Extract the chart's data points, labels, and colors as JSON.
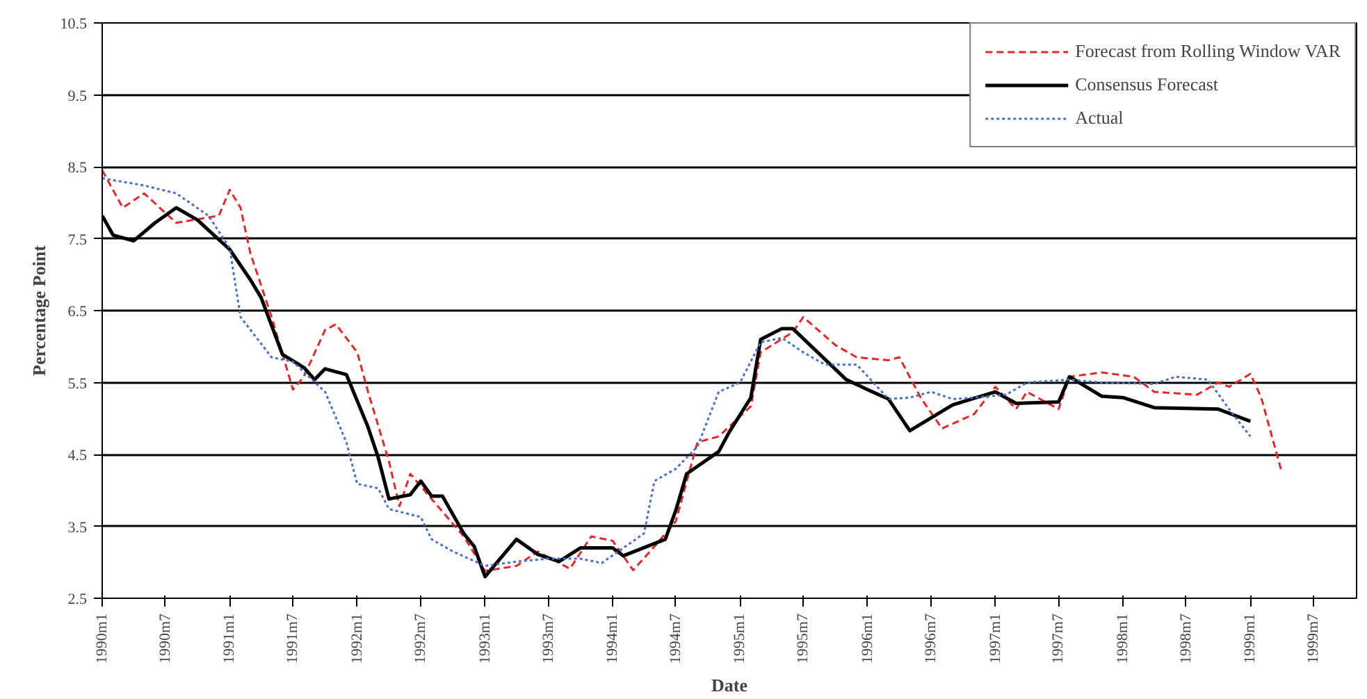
{
  "chart_data": {
    "type": "line",
    "xlabel": "Date",
    "ylabel": "Percentage Point",
    "xlim": [
      "1990-01",
      "1999-11"
    ],
    "ylim": [
      2.5,
      10.5
    ],
    "xticks": [
      {
        "value": "1990-01",
        "label": "1990m1"
      },
      {
        "value": "1990-07",
        "label": "1990m7"
      },
      {
        "value": "1991-01",
        "label": "1991m1"
      },
      {
        "value": "1991-07",
        "label": "1991m7"
      },
      {
        "value": "1992-01",
        "label": "1992m1"
      },
      {
        "value": "1992-07",
        "label": "1992m7"
      },
      {
        "value": "1993-01",
        "label": "1993m1"
      },
      {
        "value": "1993-07",
        "label": "1993m7"
      },
      {
        "value": "1994-01",
        "label": "1994m1"
      },
      {
        "value": "1994-07",
        "label": "1994m7"
      },
      {
        "value": "1995-01",
        "label": "1995m1"
      },
      {
        "value": "1995-07",
        "label": "1995m7"
      },
      {
        "value": "1996-01",
        "label": "1996m1"
      },
      {
        "value": "1996-07",
        "label": "1996m7"
      },
      {
        "value": "1997-01",
        "label": "1997m1"
      },
      {
        "value": "1997-07",
        "label": "1997m7"
      },
      {
        "value": "1998-01",
        "label": "1998m1"
      },
      {
        "value": "1998-07",
        "label": "1998m7"
      },
      {
        "value": "1999-01",
        "label": "1999m1"
      },
      {
        "value": "1999-07",
        "label": "1999m7"
      }
    ],
    "yticks": [
      2.5,
      3.5,
      4.5,
      5.5,
      6.5,
      7.5,
      8.5,
      9.5,
      10.5
    ],
    "grid": "y",
    "legend": "top right",
    "series": [
      {
        "name": "Forecast from Rolling Window VAR",
        "color": "#e8262a",
        "line_style": "dashed",
        "x": [
          "1990-01",
          "1990-03",
          "1990-05",
          "1990-08",
          "1990-12",
          "1991-01",
          "1991-02",
          "1991-03",
          "1991-05",
          "1991-07",
          "1991-08",
          "1991-10",
          "1991-11",
          "1992-01",
          "1992-02",
          "1992-04",
          "1992-05",
          "1992-06",
          "1992-08",
          "1992-11",
          "1993-01",
          "1993-04",
          "1993-06",
          "1993-09",
          "1993-11",
          "1994-01",
          "1994-03",
          "1994-05",
          "1994-07",
          "1994-09",
          "1994-11",
          "1995-02",
          "1995-03",
          "1995-06",
          "1995-07",
          "1995-10",
          "1995-12",
          "1996-03",
          "1996-04",
          "1996-06",
          "1996-08",
          "1996-11",
          "1997-01",
          "1997-03",
          "1997-04",
          "1997-07",
          "1997-08",
          "1997-11",
          "1998-02",
          "1998-04",
          "1998-08",
          "1998-10",
          "1998-11",
          "1999-01",
          "1999-02",
          "1999-04"
        ],
        "values": [
          8.45,
          7.93,
          8.13,
          7.72,
          7.82,
          8.18,
          7.93,
          7.3,
          6.41,
          5.4,
          5.58,
          6.23,
          6.31,
          5.92,
          5.37,
          4.4,
          3.78,
          4.23,
          3.88,
          3.36,
          2.88,
          2.95,
          3.15,
          2.91,
          3.36,
          3.3,
          2.89,
          3.22,
          3.57,
          4.67,
          4.75,
          5.17,
          5.92,
          6.2,
          6.41,
          6.02,
          5.85,
          5.81,
          5.85,
          5.29,
          4.86,
          5.06,
          5.44,
          5.13,
          5.37,
          5.13,
          5.58,
          5.64,
          5.58,
          5.37,
          5.33,
          5.5,
          5.44,
          5.62,
          5.29,
          4.25
        ]
      },
      {
        "name": "Consensus Forecast",
        "color": "#000000",
        "line_style": "solid",
        "x": [
          "1990-01",
          "1990-02",
          "1990-04",
          "1990-06",
          "1990-08",
          "1990-10",
          "1990-11",
          "1991-01",
          "1991-03",
          "1991-04",
          "1991-06",
          "1991-08",
          "1991-09",
          "1991-10",
          "1991-12",
          "1992-02",
          "1992-03",
          "1992-04",
          "1992-06",
          "1992-07",
          "1992-08",
          "1992-09",
          "1992-11",
          "1992-12",
          "1993-01",
          "1993-04",
          "1993-06",
          "1993-08",
          "1993-10",
          "1994-01",
          "1994-02",
          "1994-06",
          "1994-07",
          "1994-08",
          "1994-11",
          "1994-12",
          "1995-02",
          "1995-03",
          "1995-05",
          "1995-06",
          "1995-11",
          "1996-01",
          "1996-03",
          "1996-05",
          "1996-09",
          "1997-01",
          "1997-03",
          "1997-07",
          "1997-08",
          "1997-11",
          "1998-01",
          "1998-04",
          "1998-10",
          "1999-01"
        ],
        "values": [
          7.82,
          7.55,
          7.47,
          7.72,
          7.93,
          7.76,
          7.62,
          7.35,
          6.93,
          6.68,
          5.89,
          5.71,
          5.54,
          5.69,
          5.61,
          4.88,
          4.46,
          3.88,
          3.94,
          4.13,
          3.92,
          3.92,
          3.4,
          3.22,
          2.8,
          3.32,
          3.11,
          3.01,
          3.2,
          3.2,
          3.09,
          3.32,
          3.72,
          4.23,
          4.54,
          4.81,
          5.29,
          6.1,
          6.25,
          6.25,
          5.54,
          5.4,
          5.27,
          4.83,
          5.19,
          5.37,
          5.21,
          5.23,
          5.58,
          5.31,
          5.29,
          5.15,
          5.13,
          4.96
        ]
      },
      {
        "name": "Actual",
        "color": "#4a6fc4",
        "line_style": "dotted",
        "x": [
          "1990-01",
          "1990-05",
          "1990-08",
          "1990-11",
          "1991-01",
          "1991-02",
          "1991-05",
          "1991-07",
          "1991-10",
          "1991-12",
          "1992-01",
          "1992-03",
          "1992-04",
          "1992-07",
          "1992-08",
          "1992-10",
          "1993-01",
          "1993-04",
          "1993-07",
          "1993-10",
          "1993-12",
          "1994-04",
          "1994-05",
          "1994-07",
          "1994-09",
          "1994-11",
          "1995-01",
          "1995-03",
          "1995-05",
          "1995-07",
          "1995-09",
          "1995-12",
          "1996-03",
          "1996-05",
          "1996-07",
          "1996-09",
          "1996-11",
          "1997-02",
          "1997-04",
          "1997-08",
          "1997-11",
          "1998-04",
          "1998-06",
          "1998-09",
          "1998-11",
          "1999-01"
        ],
        "values": [
          8.34,
          8.24,
          8.13,
          7.82,
          7.37,
          6.41,
          5.85,
          5.79,
          5.37,
          4.67,
          4.09,
          4.03,
          3.74,
          3.63,
          3.32,
          3.15,
          2.95,
          3.01,
          3.05,
          3.05,
          2.99,
          3.4,
          4.13,
          4.3,
          4.61,
          5.37,
          5.5,
          6.06,
          6.12,
          5.92,
          5.75,
          5.75,
          5.27,
          5.29,
          5.37,
          5.27,
          5.29,
          5.33,
          5.5,
          5.54,
          5.5,
          5.48,
          5.58,
          5.54,
          5.13,
          4.75
        ]
      }
    ]
  }
}
